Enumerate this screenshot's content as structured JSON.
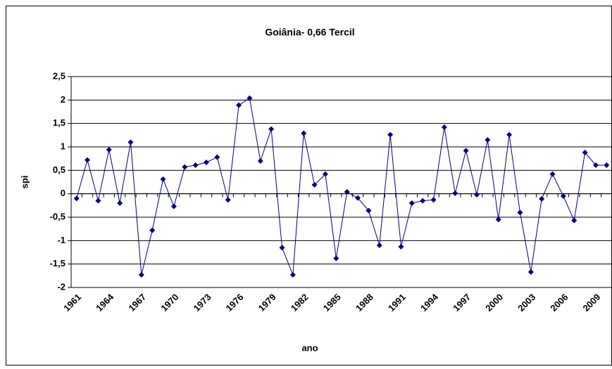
{
  "chart_data": {
    "type": "line",
    "title": "Goiânia- 0,66 Tercil",
    "x_label": "ano",
    "y_label": "spi",
    "categories": [
      "1961",
      null,
      null,
      "1964",
      null,
      null,
      "1967",
      null,
      null,
      "1970",
      null,
      null,
      "1973",
      null,
      null,
      "1976",
      null,
      null,
      "1979",
      null,
      null,
      "1982",
      null,
      null,
      "1985",
      null,
      null,
      "1988",
      null,
      null,
      "1991",
      null,
      null,
      "1994",
      null,
      null,
      "1997",
      null,
      null,
      "2000",
      null,
      null,
      "2003",
      null,
      null,
      "2006",
      null,
      null,
      "2009",
      null
    ],
    "values": [
      -0.1,
      0.72,
      -0.15,
      0.94,
      -0.2,
      1.1,
      -1.73,
      -0.78,
      0.31,
      -0.27,
      0.57,
      0.61,
      0.67,
      0.78,
      -0.13,
      1.89,
      2.04,
      0.7,
      1.38,
      -1.15,
      -1.73,
      1.29,
      0.19,
      0.42,
      -1.38,
      0.04,
      -0.09,
      -0.36,
      -1.1,
      1.26,
      -1.13,
      -0.2,
      -0.15,
      -0.13,
      1.42,
      0.01,
      0.92,
      -0.02,
      1.15,
      -0.55,
      1.26,
      -0.4,
      -1.67,
      -0.11,
      0.42,
      -0.05,
      -0.57,
      0.88,
      0.61,
      0.61
    ],
    "color": "#000080",
    "ylim": [
      -2,
      2.5
    ],
    "yticks": [
      -2,
      {
        "value": -1.5,
        "label": "-1,5"
      },
      -1,
      {
        "value": -0.5,
        "label": "-0,5"
      },
      0,
      {
        "value": 0.5,
        "label": "0,5"
      },
      1,
      {
        "value": 1.5,
        "label": "1,5"
      },
      2,
      {
        "value": 2.5,
        "label": "2,5"
      }
    ],
    "grid": true
  }
}
